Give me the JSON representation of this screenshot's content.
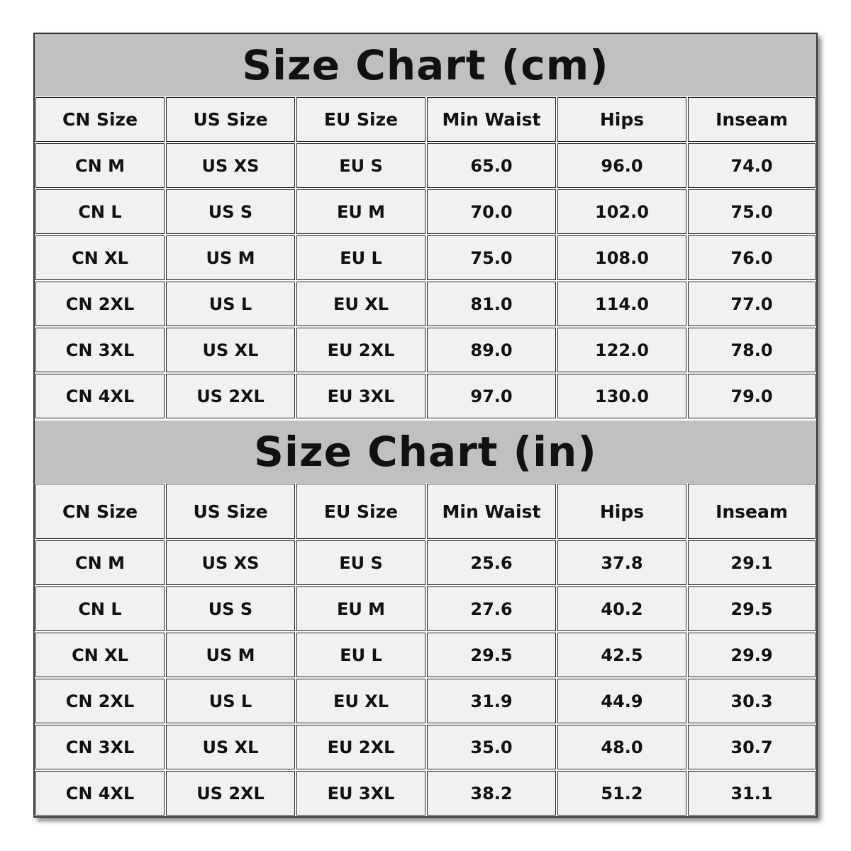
{
  "sections": [
    {
      "title": "Size Chart (cm)",
      "headers": [
        "CN Size",
        "US Size",
        "EU Size",
        "Min Waist",
        "Hips",
        "Inseam"
      ],
      "rows": [
        [
          "CN M",
          "US XS",
          "EU S",
          "65.0",
          "96.0",
          "74.0"
        ],
        [
          "CN L",
          "US S",
          "EU M",
          "70.0",
          "102.0",
          "75.0"
        ],
        [
          "CN XL",
          "US M",
          "EU L",
          "75.0",
          "108.0",
          "76.0"
        ],
        [
          "CN 2XL",
          "US L",
          "EU XL",
          "81.0",
          "114.0",
          "77.0"
        ],
        [
          "CN 3XL",
          "US XL",
          "EU 2XL",
          "89.0",
          "122.0",
          "78.0"
        ],
        [
          "CN 4XL",
          "US 2XL",
          "EU 3XL",
          "97.0",
          "130.0",
          "79.0"
        ]
      ]
    },
    {
      "title": "Size Chart (in)",
      "headers": [
        "CN Size",
        "US Size",
        "EU Size",
        "Min Waist",
        "Hips",
        "Inseam"
      ],
      "rows": [
        [
          "CN M",
          "US XS",
          "EU S",
          "25.6",
          "37.8",
          "29.1"
        ],
        [
          "CN L",
          "US S",
          "EU M",
          "27.6",
          "40.2",
          "29.5"
        ],
        [
          "CN XL",
          "US M",
          "EU L",
          "29.5",
          "42.5",
          "29.9"
        ],
        [
          "CN 2XL",
          "US L",
          "EU XL",
          "31.9",
          "44.9",
          "30.3"
        ],
        [
          "CN 3XL",
          "US XL",
          "EU 2XL",
          "35.0",
          "48.0",
          "30.7"
        ],
        [
          "CN 4XL",
          "US 2XL",
          "EU 3XL",
          "38.2",
          "51.2",
          "31.1"
        ]
      ]
    }
  ],
  "colors": {
    "title_band": "#c0c0c0",
    "cell": "#f1f1f1",
    "border": "#222222"
  }
}
